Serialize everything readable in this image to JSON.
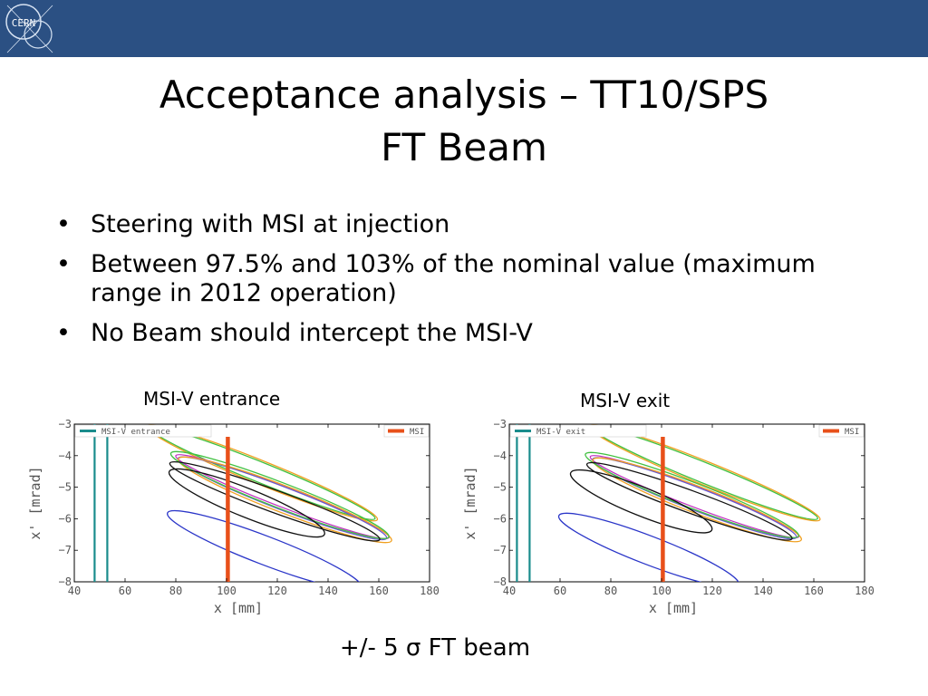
{
  "header": {
    "logo_text": "CERN",
    "title_line1": "Acceptance analysis – TT10/SPS",
    "title_line2": "FT Beam"
  },
  "bullets": [
    "Steering with MSI at injection",
    "Between 97.5% and 103% of the nominal value (maximum range in 2012 operation)",
    "No Beam should intercept the MSI-V"
  ],
  "captions": {
    "left": "MSI-V entrance",
    "right": "MSI-V exit",
    "bottom": "+/- 5 σ FT beam"
  },
  "colors": {
    "header_bg": "#2b5083",
    "aperture_line": "#1a8c8c",
    "msi_line": "#e8501a",
    "ellipse_blue": "#2a35c8",
    "ellipse_black": "#111111",
    "ellipse_magenta": "#c030c0",
    "ellipse_purple": "#6a5acd",
    "ellipse_orange": "#f0a020",
    "ellipse_green": "#40c040"
  },
  "chart_data": [
    {
      "type": "scatter",
      "xlabel": "x [mm]",
      "ylabel": "x' [mrad]",
      "xlim": [
        40,
        180
      ],
      "ylim": [
        -8,
        -3
      ],
      "xticks": [
        "40",
        "60",
        "80",
        "100",
        "120",
        "140",
        "160",
        "180"
      ],
      "yticks": [
        "−3",
        "−4",
        "−5",
        "−6",
        "−7",
        "−8"
      ],
      "legend": [
        {
          "name": "MSI-V entrance",
          "color": "aperture",
          "position": "top-left"
        },
        {
          "name": "MSI",
          "color": "msi",
          "position": "top-right"
        }
      ],
      "aperture_lines_x": [
        48,
        53
      ],
      "msi_line_x": 100.5,
      "ellipses": [
        {
          "color": "green",
          "cx": 114,
          "cy": -4.55,
          "rx": 48,
          "ry": 0.32,
          "angle": -22
        },
        {
          "color": "orange",
          "cx": 114,
          "cy": -4.55,
          "rx": 49,
          "ry": 0.37,
          "angle": -22
        },
        {
          "color": "magenta",
          "cx": 122,
          "cy": -5.3,
          "rx": 45,
          "ry": 0.32,
          "angle": -21
        },
        {
          "color": "purple",
          "cx": 122,
          "cy": -5.35,
          "rx": 44,
          "ry": 0.36,
          "angle": -21
        },
        {
          "color": "orange",
          "cx": 123,
          "cy": -5.4,
          "rx": 45,
          "ry": 0.42,
          "angle": -21
        },
        {
          "color": "green",
          "cx": 121,
          "cy": -5.25,
          "rx": 46,
          "ry": 0.4,
          "angle": -21
        },
        {
          "color": "black",
          "cx": 108,
          "cy": -5.5,
          "rx": 33,
          "ry": 0.45,
          "angle": -22
        },
        {
          "color": "black",
          "cx": 119,
          "cy": -5.45,
          "rx": 44,
          "ry": 0.35,
          "angle": -20
        },
        {
          "color": "blue",
          "cx": 115,
          "cy": -7.0,
          "rx": 41,
          "ry": 0.45,
          "angle": -21
        }
      ]
    },
    {
      "type": "scatter",
      "xlabel": "x [mm]",
      "ylabel": "x' [mrad]",
      "xlim": [
        40,
        180
      ],
      "ylim": [
        -8,
        -3
      ],
      "xticks": [
        "40",
        "60",
        "80",
        "100",
        "120",
        "140",
        "160",
        "180"
      ],
      "yticks": [
        "−3",
        "−4",
        "−5",
        "−6",
        "−7",
        "−8"
      ],
      "legend": [
        {
          "name": "MSI-V exit",
          "color": "aperture",
          "position": "top-left"
        },
        {
          "name": "MSI",
          "color": "msi",
          "position": "top-right"
        }
      ],
      "aperture_lines_x": [
        43,
        48
      ],
      "msi_line_x": 100.5,
      "ellipses": [
        {
          "color": "green",
          "cx": 117,
          "cy": -4.55,
          "rx": 48,
          "ry": 0.32,
          "angle": -22
        },
        {
          "color": "orange",
          "cx": 117,
          "cy": -4.55,
          "rx": 49,
          "ry": 0.37,
          "angle": -22
        },
        {
          "color": "magenta",
          "cx": 113,
          "cy": -5.3,
          "rx": 44,
          "ry": 0.32,
          "angle": -21
        },
        {
          "color": "purple",
          "cx": 113,
          "cy": -5.35,
          "rx": 43,
          "ry": 0.36,
          "angle": -21
        },
        {
          "color": "orange",
          "cx": 114,
          "cy": -5.4,
          "rx": 44,
          "ry": 0.42,
          "angle": -21
        },
        {
          "color": "green",
          "cx": 112,
          "cy": -5.25,
          "rx": 45,
          "ry": 0.4,
          "angle": -21
        },
        {
          "color": "black",
          "cx": 92,
          "cy": -5.45,
          "rx": 30,
          "ry": 0.45,
          "angle": -22
        },
        {
          "color": "black",
          "cx": 111,
          "cy": -5.45,
          "rx": 43,
          "ry": 0.35,
          "angle": -20
        },
        {
          "color": "blue",
          "cx": 95,
          "cy": -7.0,
          "rx": 38,
          "ry": 0.45,
          "angle": -21
        }
      ]
    }
  ]
}
